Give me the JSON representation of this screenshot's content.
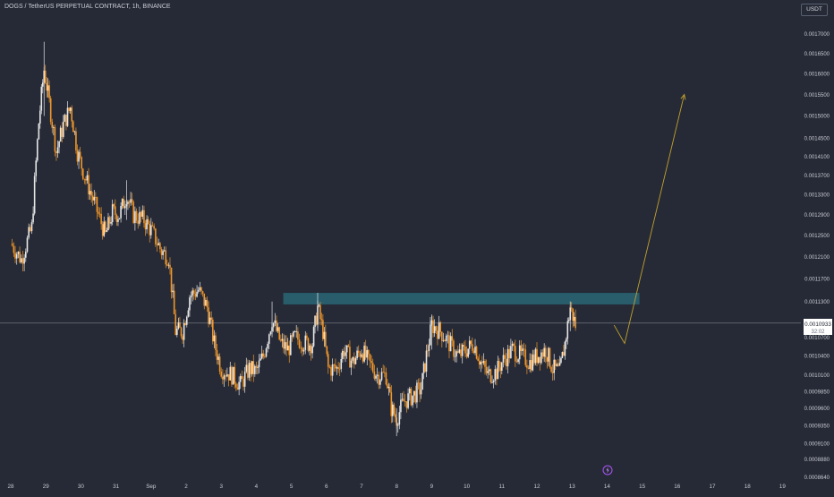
{
  "header": {
    "symbol_title": "DOGS / TetherUS PERPETUAL CONTRACT, 1h, BINANCE",
    "currency_button": "USDT"
  },
  "colors": {
    "background": "#262a36",
    "up_candle": "#e6e6e6",
    "down_candle": "#f0962a",
    "resistance_zone": "#2b6a7a",
    "projection_arrow": "#c2a12c",
    "axis_text": "#c7cad1"
  },
  "price_badge": {
    "price": "0.0010933",
    "countdown": "32:02"
  },
  "event_marker": {
    "icon": "lightning-icon"
  },
  "chart_data": {
    "type": "candlestick",
    "y_axis_ticks": [
      "0.0017000",
      "0.0016500",
      "0.0016000",
      "0.0015500",
      "0.0015000",
      "0.0014500",
      "0.0014100",
      "0.0013700",
      "0.0013300",
      "0.0012900",
      "0.0012500",
      "0.0012100",
      "0.0011700",
      "0.0011300",
      "0.0010700",
      "0.0010400",
      "0.0010100",
      "0.0009850",
      "0.0009600",
      "0.0009350",
      "0.0009100",
      "0.0008880",
      "0.0008640"
    ],
    "x_axis_ticks": [
      "28",
      "29",
      "30",
      "31",
      "Sep",
      "2",
      "3",
      "4",
      "5",
      "6",
      "7",
      "8",
      "9",
      "10",
      "11",
      "12",
      "13",
      "14",
      "15",
      "16",
      "17",
      "18",
      "19"
    ],
    "ylim": [
      0.000864,
      0.0017
    ],
    "price_scale": "log",
    "x_day_range": [
      "28",
      "19"
    ],
    "series_shape": [
      {
        "day": 28.0,
        "price": 0.001235
      },
      {
        "day": 28.3,
        "price": 0.001205
      },
      {
        "day": 28.6,
        "price": 0.001265
      },
      {
        "day": 28.8,
        "price": 0.001485
      },
      {
        "day": 28.95,
        "price": 0.00161
      },
      {
        "day": 29.1,
        "price": 0.00153
      },
      {
        "day": 29.3,
        "price": 0.00142
      },
      {
        "day": 29.5,
        "price": 0.00148
      },
      {
        "day": 29.7,
        "price": 0.00152
      },
      {
        "day": 29.9,
        "price": 0.00142
      },
      {
        "day": 30.1,
        "price": 0.00137
      },
      {
        "day": 30.3,
        "price": 0.00133
      },
      {
        "day": 30.5,
        "price": 0.00129
      },
      {
        "day": 30.7,
        "price": 0.00125
      },
      {
        "day": 30.9,
        "price": 0.001295
      },
      {
        "day": 31.1,
        "price": 0.00129
      },
      {
        "day": 31.3,
        "price": 0.00133
      },
      {
        "day": 31.5,
        "price": 0.00129
      },
      {
        "day": 31.8,
        "price": 0.00128
      },
      {
        "day": 32.0,
        "price": 0.00126
      },
      {
        "day": 32.3,
        "price": 0.00122
      },
      {
        "day": 32.5,
        "price": 0.00121
      },
      {
        "day": 32.7,
        "price": 0.00108
      },
      {
        "day": 32.9,
        "price": 0.00108
      },
      {
        "day": 33.1,
        "price": 0.00114
      },
      {
        "day": 33.35,
        "price": 0.00115
      },
      {
        "day": 33.6,
        "price": 0.00112
      },
      {
        "day": 33.8,
        "price": 0.00106
      },
      {
        "day": 34.0,
        "price": 0.00102
      },
      {
        "day": 34.3,
        "price": 0.00101
      },
      {
        "day": 34.55,
        "price": 0.000995
      },
      {
        "day": 34.8,
        "price": 0.00102
      },
      {
        "day": 35.0,
        "price": 0.001015
      },
      {
        "day": 35.2,
        "price": 0.00104
      },
      {
        "day": 35.45,
        "price": 0.0011
      },
      {
        "day": 35.7,
        "price": 0.00106
      },
      {
        "day": 35.9,
        "price": 0.00105
      },
      {
        "day": 36.1,
        "price": 0.00107
      },
      {
        "day": 36.4,
        "price": 0.00106
      },
      {
        "day": 36.6,
        "price": 0.00106
      },
      {
        "day": 36.75,
        "price": 0.00112
      },
      {
        "day": 36.9,
        "price": 0.00108
      },
      {
        "day": 37.05,
        "price": 0.00102
      },
      {
        "day": 37.3,
        "price": 0.00102
      },
      {
        "day": 37.5,
        "price": 0.00105
      },
      {
        "day": 37.75,
        "price": 0.00103
      },
      {
        "day": 38.0,
        "price": 0.00105
      },
      {
        "day": 38.2,
        "price": 0.00103
      },
      {
        "day": 38.45,
        "price": 0.00101
      },
      {
        "day": 38.7,
        "price": 0.00101
      },
      {
        "day": 38.85,
        "price": 0.00096
      },
      {
        "day": 39.0,
        "price": 0.000945
      },
      {
        "day": 39.2,
        "price": 0.00097
      },
      {
        "day": 39.5,
        "price": 0.00098
      },
      {
        "day": 39.7,
        "price": 0.00099
      },
      {
        "day": 39.85,
        "price": 0.00104
      },
      {
        "day": 40.0,
        "price": 0.00109
      },
      {
        "day": 40.25,
        "price": 0.00108
      },
      {
        "day": 40.5,
        "price": 0.00106
      },
      {
        "day": 40.75,
        "price": 0.00104
      },
      {
        "day": 41.0,
        "price": 0.00105
      },
      {
        "day": 41.2,
        "price": 0.00106
      },
      {
        "day": 41.4,
        "price": 0.00103
      },
      {
        "day": 41.6,
        "price": 0.00101
      },
      {
        "day": 41.85,
        "price": 0.001015
      },
      {
        "day": 42.0,
        "price": 0.00103
      },
      {
        "day": 42.3,
        "price": 0.00105
      },
      {
        "day": 42.55,
        "price": 0.00104
      },
      {
        "day": 42.8,
        "price": 0.00103
      },
      {
        "day": 43.0,
        "price": 0.00104
      },
      {
        "day": 43.25,
        "price": 0.00105
      },
      {
        "day": 43.45,
        "price": 0.00102
      },
      {
        "day": 43.65,
        "price": 0.001015
      },
      {
        "day": 43.8,
        "price": 0.00106
      },
      {
        "day": 43.95,
        "price": 0.00112
      },
      {
        "day": 44.1,
        "price": 0.00109
      }
    ],
    "resistance_zone": {
      "start_day": 5.0,
      "end_day": 15.0,
      "low": 0.001125,
      "high": 0.001145
    },
    "last_price": 0.0010933,
    "projection": [
      {
        "day": 14.2,
        "price": 0.00109
      },
      {
        "day": 14.5,
        "price": 0.00106
      },
      {
        "day": 16.2,
        "price": 0.00155
      }
    ]
  }
}
